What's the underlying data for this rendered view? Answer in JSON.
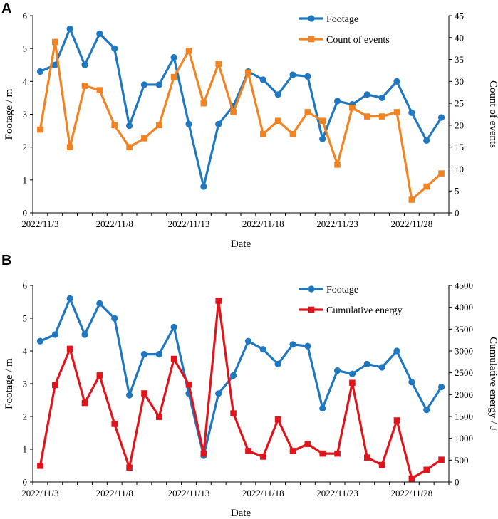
{
  "chart_data": [
    {
      "panel": "A",
      "type": "line",
      "xlabel": "Date",
      "ylabel_left": "Footage / m",
      "ylabel_right": "Count of events",
      "ylim_left": [
        0,
        6
      ],
      "ylim_right": [
        0,
        45
      ],
      "yticks_left": [
        "0",
        "1",
        "2",
        "3",
        "4",
        "5",
        "6"
      ],
      "yticks_right": [
        "0",
        "5",
        "10",
        "15",
        "20",
        "25",
        "30",
        "35",
        "40",
        "45"
      ],
      "x_count": 28,
      "x_tick_labels": [
        {
          "index": 0,
          "label": "2022/11/3"
        },
        {
          "index": 5,
          "label": "2022/11/8"
        },
        {
          "index": 10,
          "label": "2022/11/13"
        },
        {
          "index": 15,
          "label": "2022/11/18"
        },
        {
          "index": 20,
          "label": "2022/11/23"
        },
        {
          "index": 25,
          "label": "2022/11/28"
        }
      ],
      "series": [
        {
          "name": "Footage",
          "axis": "left",
          "color": "#1f77c0",
          "marker": "circle",
          "values": [
            4.3,
            4.5,
            5.6,
            4.5,
            5.45,
            5.0,
            2.65,
            3.9,
            3.9,
            4.73,
            2.7,
            0.8,
            2.7,
            3.25,
            4.3,
            4.05,
            3.6,
            4.2,
            4.15,
            2.25,
            3.4,
            3.3,
            3.6,
            3.5,
            4.0,
            3.05,
            2.2,
            2.9
          ]
        },
        {
          "name": "Count of events",
          "axis": "right",
          "color": "#f28322",
          "marker": "square",
          "values": [
            19,
            39,
            15,
            29,
            28,
            20,
            15,
            17,
            20,
            31,
            37,
            25,
            34,
            23,
            32,
            18,
            21,
            18,
            23,
            21,
            11,
            24,
            22,
            22,
            23,
            3,
            6,
            9
          ]
        }
      ]
    },
    {
      "panel": "B",
      "type": "line",
      "xlabel": "Date",
      "ylabel_left": "Footage / m",
      "ylabel_right": "Cumulative energy / J",
      "ylim_left": [
        0,
        6
      ],
      "ylim_right": [
        0,
        4500
      ],
      "yticks_left": [
        "0",
        "1",
        "2",
        "3",
        "4",
        "5",
        "6"
      ],
      "yticks_right": [
        "0",
        "500",
        "1000",
        "1500",
        "2000",
        "2500",
        "3000",
        "3500",
        "4000",
        "4500"
      ],
      "x_count": 28,
      "x_tick_labels": [
        {
          "index": 0,
          "label": "2022/11/3"
        },
        {
          "index": 5,
          "label": "2022/11/8"
        },
        {
          "index": 10,
          "label": "2022/11/13"
        },
        {
          "index": 15,
          "label": "2022/11/18"
        },
        {
          "index": 20,
          "label": "2022/11/23"
        },
        {
          "index": 25,
          "label": "2022/11/28"
        }
      ],
      "series": [
        {
          "name": "Footage",
          "axis": "left",
          "color": "#1f77c0",
          "marker": "circle",
          "values": [
            4.3,
            4.5,
            5.6,
            4.5,
            5.45,
            5.0,
            2.65,
            3.9,
            3.9,
            4.73,
            2.7,
            0.8,
            2.7,
            3.25,
            4.3,
            4.05,
            3.6,
            4.2,
            4.15,
            2.25,
            3.4,
            3.3,
            3.6,
            3.5,
            4.0,
            3.05,
            2.2,
            2.9
          ]
        },
        {
          "name": "Cumulative energy",
          "axis": "right",
          "color": "#e0141b",
          "marker": "square",
          "values": [
            370,
            2220,
            3050,
            1810,
            2440,
            1330,
            330,
            2030,
            1490,
            2820,
            2230,
            650,
            4150,
            1570,
            710,
            580,
            1430,
            710,
            870,
            650,
            650,
            2270,
            560,
            390,
            1410,
            80,
            280,
            510
          ]
        }
      ]
    }
  ]
}
